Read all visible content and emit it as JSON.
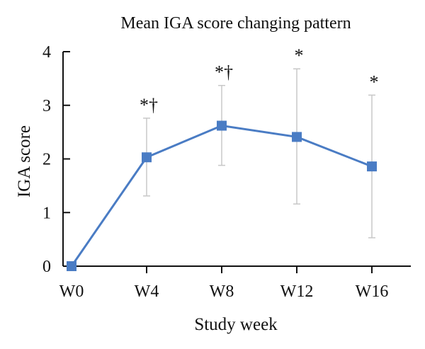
{
  "chart_data": {
    "type": "line",
    "title": "Mean IGA score changing pattern",
    "xlabel": "Study week",
    "ylabel": "IGA score",
    "categories": [
      "W0",
      "W4",
      "W8",
      "W12",
      "W16"
    ],
    "ylim": [
      0,
      4
    ],
    "yticks": [
      "0",
      "1",
      "2",
      "3",
      "4"
    ],
    "grid": false,
    "legend": "none",
    "series": [
      {
        "values": [
          0,
          2.03,
          2.62,
          2.41,
          1.86
        ],
        "error_lower": [
          0,
          1.31,
          1.88,
          1.16,
          0.53
        ],
        "error_upper": [
          0,
          2.76,
          3.37,
          3.68,
          3.19
        ],
        "color": "#4a7cc4"
      }
    ],
    "annotations": [
      "",
      "*†",
      "*†",
      "*",
      "*"
    ],
    "colors": {
      "line": "#4a7cc4",
      "marker": "#4a7cc4",
      "error_bar": "#c8c8c8",
      "axis": "#111111"
    }
  }
}
